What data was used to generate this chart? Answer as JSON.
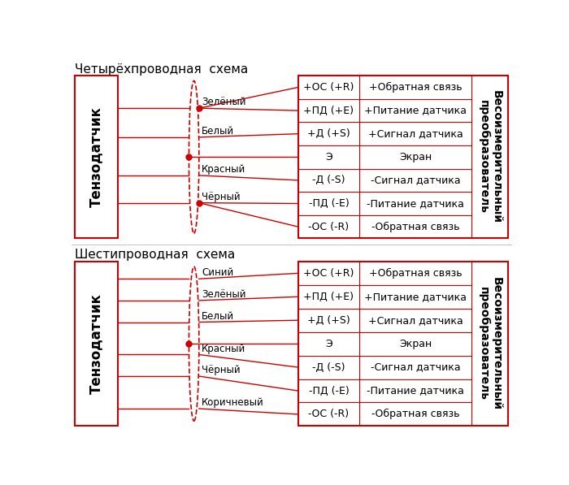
{
  "bg_color": "#ffffff",
  "line_color": "#cc0000",
  "text_color": "#000000",
  "top_title": "Четырёхпроводная  схема",
  "bottom_title": "Шестипроводная  схема",
  "sensor_label": "Тензодатчик",
  "converter_label": "Весоизмерительный\nпреобразователь",
  "top_wire_rows": [
    [
      "+ОС (+R)",
      "+Обратная связь"
    ],
    [
      "+ПД (+Е)",
      "+Питание датчика"
    ],
    [
      "+Д (+S)",
      "+Сигнал датчика"
    ],
    [
      "Э",
      "Экран"
    ],
    [
      "-Д (-S)",
      "-Сигнал датчика"
    ],
    [
      "-ПД (-Е)",
      "-Питание датчика"
    ],
    [
      "-ОС (-R)",
      "-Обратная связь"
    ]
  ],
  "bottom_wire_rows": [
    [
      "+ОС (+R)",
      "+Обратная связь"
    ],
    [
      "+ПД (+Е)",
      "+Питание датчика"
    ],
    [
      "+Д (+S)",
      "+Сигнал датчика"
    ],
    [
      "Э",
      "Экран"
    ],
    [
      "-Д (-S)",
      "-Сигнал датчика"
    ],
    [
      "-ПД (-Е)",
      "-Питание датчика"
    ],
    [
      "-ОС (-R)",
      "-Обратная связь"
    ]
  ],
  "font_size_title": 11,
  "font_size_wire": 8.5,
  "font_size_table": 9,
  "font_size_sensor": 12,
  "font_size_converter": 10
}
